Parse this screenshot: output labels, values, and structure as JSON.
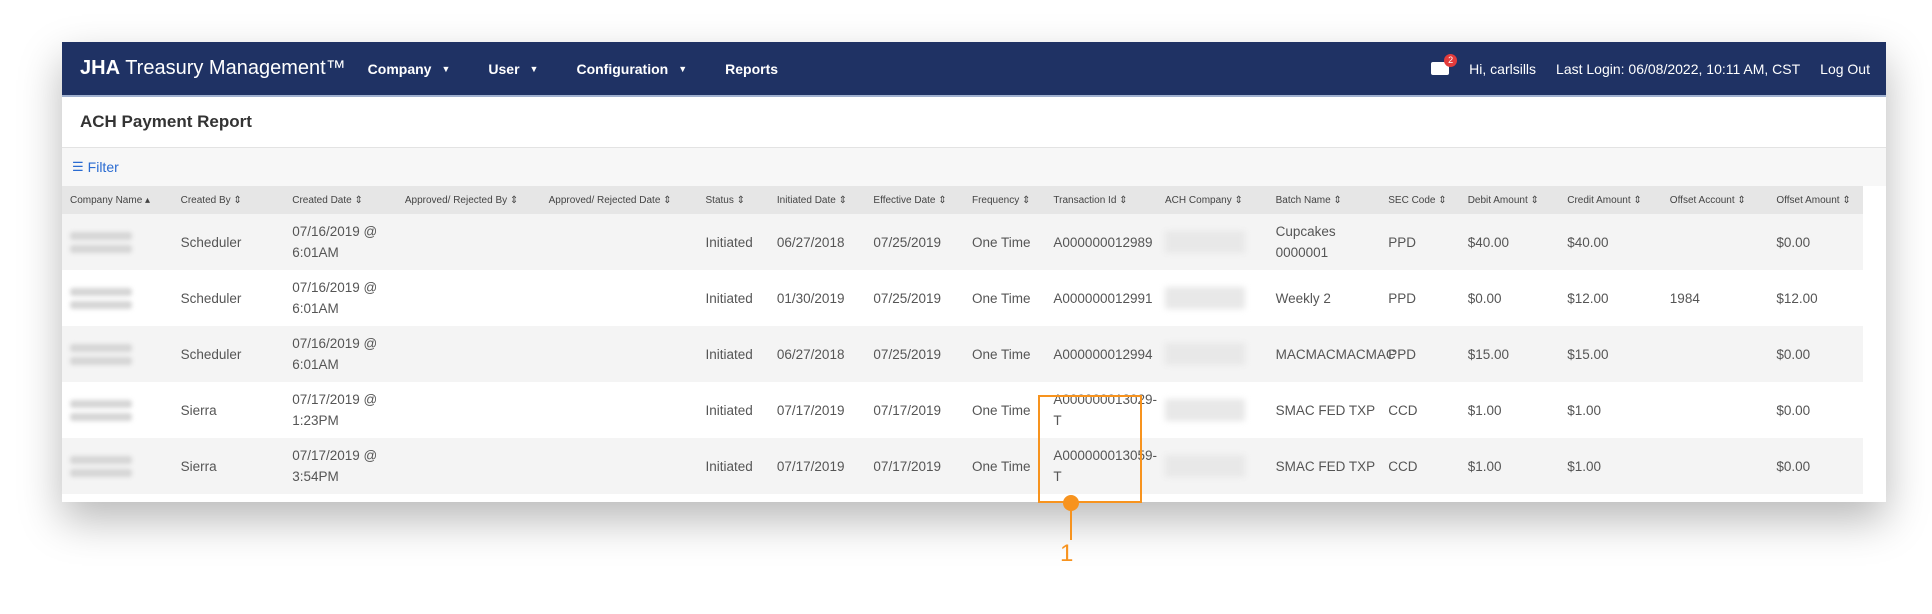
{
  "nav": {
    "brand_bold": "JHA",
    "brand_rest": " Treasury Management™",
    "items": [
      {
        "label": "Company",
        "dropdown": true
      },
      {
        "label": "User",
        "dropdown": true
      },
      {
        "label": "Configuration",
        "dropdown": true
      },
      {
        "label": "Reports",
        "dropdown": false
      }
    ],
    "mail_count": "2",
    "greeting": "Hi, carlsills",
    "last_login": "Last Login: 06/08/2022, 10:11 AM, CST",
    "logout": "Log Out",
    "color": "#1f3264"
  },
  "page": {
    "title": "ACH Payment Report",
    "filter": "Filter"
  },
  "table": {
    "headers": [
      "Company Name ▴",
      "Created By ⇕",
      "Created Date ⇕",
      "Approved/ Rejected By ⇕",
      "Approved/ Rejected Date ⇕",
      "Status ⇕",
      "Initiated Date ⇕",
      "Effective Date ⇕",
      "Frequency ⇕",
      "Transaction Id ⇕",
      "ACH Company ⇕",
      "Batch Name ⇕",
      "SEC Code ⇕",
      "Debit Amount ⇕",
      "Credit Amount ⇕",
      "Offset Account ⇕",
      "Offset Amount ⇕"
    ],
    "rows": [
      [
        "",
        "Scheduler",
        "07/16/2019 @ 6:01AM",
        "",
        "",
        "Initiated",
        "06/27/2018",
        "07/25/2019",
        "One Time",
        "A000000012989",
        "",
        "Cupcakes 0000001",
        "PPD",
        "$40.00",
        "$40.00",
        "",
        "$0.00"
      ],
      [
        "",
        "Scheduler",
        "07/16/2019 @ 6:01AM",
        "",
        "",
        "Initiated",
        "01/30/2019",
        "07/25/2019",
        "One Time",
        "A000000012991",
        "",
        "Weekly 2",
        "PPD",
        "$0.00",
        "$12.00",
        "1984",
        "$12.00"
      ],
      [
        "",
        "Scheduler",
        "07/16/2019 @ 6:01AM",
        "",
        "",
        "Initiated",
        "06/27/2018",
        "07/25/2019",
        "One Time",
        "A000000012994",
        "",
        "MACMACMACMAC",
        "PPD",
        "$15.00",
        "$15.00",
        "",
        "$0.00"
      ],
      [
        "",
        "Sierra",
        "07/17/2019 @ 1:23PM",
        "",
        "",
        "Initiated",
        "07/17/2019",
        "07/17/2019",
        "One Time",
        "A000000013029-T",
        "",
        "SMAC FED TXP",
        "CCD",
        "$1.00",
        "$1.00",
        "",
        "$0.00"
      ],
      [
        "",
        "Sierra",
        "07/17/2019 @ 3:54PM",
        "",
        "",
        "Initiated",
        "07/17/2019",
        "07/17/2019",
        "One Time",
        "A000000013059-T",
        "",
        "SMAC FED TXP",
        "CCD",
        "$1.00",
        "$1.00",
        "",
        "$0.00"
      ]
    ]
  },
  "annotation": {
    "label": "1",
    "color": "#f7931e"
  }
}
